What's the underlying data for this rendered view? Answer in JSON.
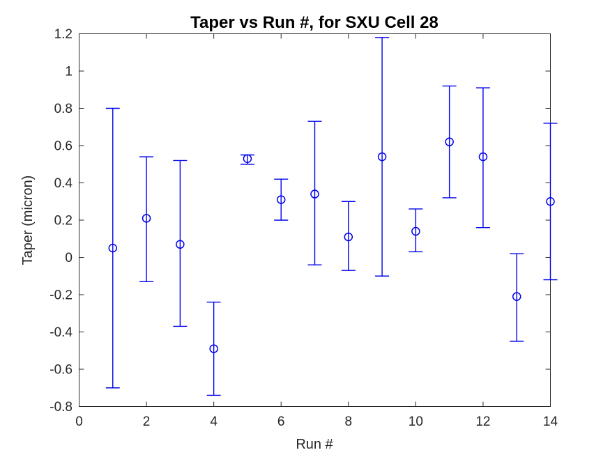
{
  "figure": {
    "background": "#ffffff"
  },
  "chart_data": {
    "type": "scatter",
    "subtype": "errorbar",
    "title": "Taper vs Run #, for SXU Cell 28",
    "xlabel": "Run #",
    "ylabel": "Taper (micron)",
    "xlim": [
      0,
      14
    ],
    "ylim": [
      -0.8,
      1.2
    ],
    "grid": false,
    "legend": null,
    "marker": "open-circle",
    "series_color": "#0000EE",
    "axis_color": "#262626",
    "title_color": "#000000",
    "x_ticks": [
      {
        "value": 0,
        "label": "0"
      },
      {
        "value": 2,
        "label": "2"
      },
      {
        "value": 4,
        "label": "4"
      },
      {
        "value": 6,
        "label": "6"
      },
      {
        "value": 8,
        "label": "8"
      },
      {
        "value": 10,
        "label": "10"
      },
      {
        "value": 12,
        "label": "12"
      },
      {
        "value": 14,
        "label": "14"
      }
    ],
    "y_ticks": [
      {
        "value": -0.8,
        "label": "-0.8"
      },
      {
        "value": -0.6,
        "label": "-0.6"
      },
      {
        "value": -0.4,
        "label": "-0.4"
      },
      {
        "value": -0.2,
        "label": "-0.2"
      },
      {
        "value": 0,
        "label": "0"
      },
      {
        "value": 0.2,
        "label": "0.2"
      },
      {
        "value": 0.4,
        "label": "0.4"
      },
      {
        "value": 0.6,
        "label": "0.6"
      },
      {
        "value": 0.8,
        "label": "0.8"
      },
      {
        "value": 1,
        "label": "1"
      },
      {
        "value": 1.2,
        "label": "1.2"
      }
    ],
    "points": [
      {
        "x": 1,
        "y": 0.05,
        "lo": -0.7,
        "hi": 0.8
      },
      {
        "x": 2,
        "y": 0.21,
        "lo": -0.13,
        "hi": 0.54
      },
      {
        "x": 3,
        "y": 0.07,
        "lo": -0.37,
        "hi": 0.52
      },
      {
        "x": 4,
        "y": -0.49,
        "lo": -0.74,
        "hi": -0.24
      },
      {
        "x": 5,
        "y": 0.53,
        "lo": 0.5,
        "hi": 0.55
      },
      {
        "x": 6,
        "y": 0.31,
        "lo": 0.2,
        "hi": 0.42
      },
      {
        "x": 7,
        "y": 0.34,
        "lo": -0.04,
        "hi": 0.73
      },
      {
        "x": 8,
        "y": 0.11,
        "lo": -0.07,
        "hi": 0.3
      },
      {
        "x": 9,
        "y": 0.54,
        "lo": -0.1,
        "hi": 1.18
      },
      {
        "x": 10,
        "y": 0.14,
        "lo": 0.03,
        "hi": 0.26
      },
      {
        "x": 11,
        "y": 0.62,
        "lo": 0.32,
        "hi": 0.92
      },
      {
        "x": 12,
        "y": 0.54,
        "lo": 0.16,
        "hi": 0.91
      },
      {
        "x": 13,
        "y": -0.21,
        "lo": -0.45,
        "hi": 0.02
      },
      {
        "x": 14,
        "y": 0.3,
        "lo": -0.12,
        "hi": 0.72
      }
    ]
  }
}
